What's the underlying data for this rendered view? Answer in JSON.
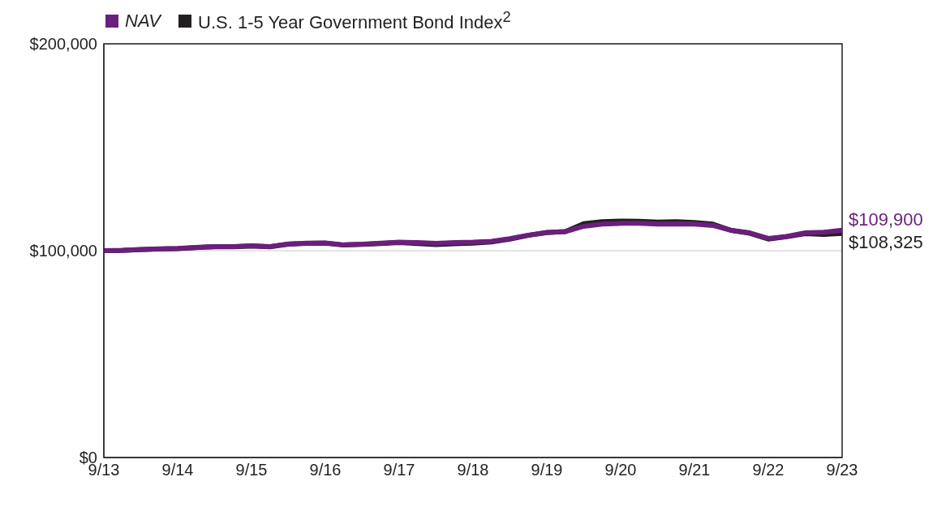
{
  "chart_data": {
    "type": "line",
    "x": [
      "2013-09",
      "2013-12",
      "2014-03",
      "2014-06",
      "2014-09",
      "2014-12",
      "2015-03",
      "2015-06",
      "2015-09",
      "2015-12",
      "2016-03",
      "2016-06",
      "2016-09",
      "2016-12",
      "2017-03",
      "2017-06",
      "2017-09",
      "2017-12",
      "2018-03",
      "2018-06",
      "2018-09",
      "2018-12",
      "2019-03",
      "2019-06",
      "2019-09",
      "2019-12",
      "2020-03",
      "2020-06",
      "2020-09",
      "2020-12",
      "2021-03",
      "2021-06",
      "2021-09",
      "2021-12",
      "2022-03",
      "2022-06",
      "2022-09",
      "2022-12",
      "2023-03",
      "2023-06",
      "2023-09"
    ],
    "series": [
      {
        "name": "NAV",
        "color": "#6b1f7c",
        "values": [
          100000,
          100200,
          100600,
          100900,
          101100,
          101600,
          102000,
          102000,
          102400,
          102000,
          103200,
          103600,
          103700,
          102800,
          103100,
          103600,
          104100,
          103900,
          103500,
          103900,
          104100,
          104500,
          105800,
          107500,
          108800,
          109200,
          111800,
          112800,
          113200,
          113200,
          112800,
          112900,
          112800,
          112200,
          109800,
          108600,
          105900,
          106900,
          108600,
          108900,
          109900
        ]
      },
      {
        "name": "U.S. 1-5 Year Government Bond Index$^{2}$",
        "color": "#231f20",
        "values": [
          100000,
          100100,
          100500,
          100800,
          101000,
          101500,
          101900,
          101900,
          102300,
          101900,
          103100,
          103500,
          103600,
          102700,
          103000,
          103400,
          103900,
          103400,
          102900,
          103300,
          103600,
          104200,
          105600,
          107400,
          108700,
          109200,
          113000,
          114000,
          114300,
          114200,
          113800,
          114000,
          113600,
          112800,
          109800,
          108400,
          105600,
          106800,
          108200,
          107800,
          108325
        ]
      }
    ],
    "xlim": [
      "2013-09",
      "2023-09"
    ],
    "xticks": [
      {
        "value": "2013-09",
        "label": "9/13"
      },
      {
        "value": "2014-09",
        "label": "9/14"
      },
      {
        "value": "2015-09",
        "label": "9/15"
      },
      {
        "value": "2016-09",
        "label": "9/16"
      },
      {
        "value": "2017-09",
        "label": "9/17"
      },
      {
        "value": "2018-09",
        "label": "9/18"
      },
      {
        "value": "2019-09",
        "label": "9/19"
      },
      {
        "value": "2020-09",
        "label": "9/20"
      },
      {
        "value": "2021-09",
        "label": "9/21"
      },
      {
        "value": "2022-09",
        "label": "9/22"
      },
      {
        "value": "2023-09",
        "label": "9/23"
      }
    ],
    "ylim": [
      0,
      200000
    ],
    "yticks": [
      {
        "value": 0,
        "label": "$0"
      },
      {
        "value": 100000,
        "label": "$100,000"
      },
      {
        "value": 200000,
        "label": "$200,000"
      }
    ],
    "grid": "y",
    "legend": "top left",
    "annotations": [
      {
        "text": "$109,900",
        "x": "2023-09",
        "y": 109900
      },
      {
        "text": "$108,325",
        "x": "2023-09",
        "y": 108325
      }
    ]
  }
}
